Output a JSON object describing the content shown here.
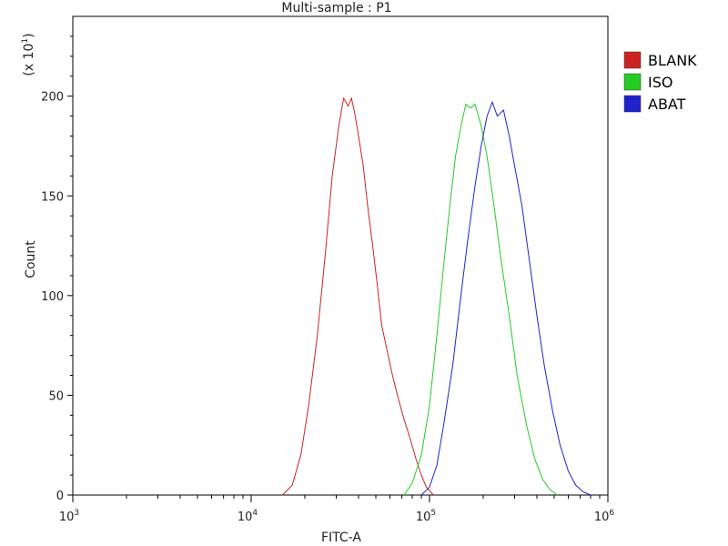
{
  "chart_data": {
    "type": "line",
    "title": "Multi-sample : P1",
    "xlabel": "FITC-A",
    "ylabel": "Count",
    "y_multiplier_label": "(x 10",
    "y_multiplier_exp": "1",
    "x_scale": "log",
    "xlim": [
      1000,
      1000000
    ],
    "ylim": [
      0,
      2400
    ],
    "x_ticks": [
      {
        "base": "10",
        "exp": "3",
        "value": 1000
      },
      {
        "base": "10",
        "exp": "4",
        "value": 10000
      },
      {
        "base": "10",
        "exp": "5",
        "value": 100000
      },
      {
        "base": "10",
        "exp": "6",
        "value": 1000000
      }
    ],
    "y_ticks": [
      {
        "label": "0",
        "value": 0
      },
      {
        "label": "50",
        "value": 500
      },
      {
        "label": "100",
        "value": 1000
      },
      {
        "label": "150",
        "value": 1500
      },
      {
        "label": "200",
        "value": 2000
      }
    ],
    "legend_position": "right",
    "series": [
      {
        "name": "BLANK",
        "color": "#cc2222",
        "x": [
          15000,
          17000,
          19000,
          21000,
          23500,
          26000,
          28500,
          31000,
          33000,
          35000,
          36500,
          38000,
          40000,
          42500,
          45000,
          48000,
          51000,
          54000,
          58000,
          62000,
          67000,
          72000,
          78000,
          84000,
          90000,
          96000,
          105000
        ],
        "y": [
          0,
          50,
          200,
          450,
          800,
          1200,
          1600,
          1850,
          1990,
          1950,
          1990,
          1920,
          1800,
          1650,
          1450,
          1250,
          1050,
          850,
          720,
          600,
          480,
          380,
          280,
          180,
          100,
          40,
          0
        ]
      },
      {
        "name": "ISO",
        "color": "#22cc22",
        "x": [
          72000,
          80000,
          90000,
          100000,
          110000,
          120000,
          130000,
          140000,
          150000,
          160000,
          170000,
          180000,
          195000,
          210000,
          230000,
          250000,
          280000,
          310000,
          350000,
          390000,
          430000,
          470000,
          520000
        ],
        "y": [
          0,
          60,
          200,
          450,
          800,
          1150,
          1450,
          1700,
          1850,
          1960,
          1940,
          1960,
          1850,
          1700,
          1450,
          1200,
          900,
          600,
          350,
          180,
          80,
          30,
          0
        ]
      },
      {
        "name": "ABAT",
        "color": "#2222cc",
        "x": [
          90000,
          100000,
          110000,
          120000,
          135000,
          150000,
          165000,
          180000,
          195000,
          210000,
          225000,
          240000,
          260000,
          280000,
          300000,
          330000,
          360000,
          400000,
          440000,
          490000,
          540000,
          600000,
          660000,
          730000,
          800000
        ],
        "y": [
          0,
          40,
          150,
          350,
          650,
          1000,
          1300,
          1550,
          1750,
          1900,
          1970,
          1900,
          1930,
          1800,
          1650,
          1450,
          1200,
          900,
          650,
          420,
          250,
          120,
          50,
          15,
          0
        ]
      }
    ]
  }
}
